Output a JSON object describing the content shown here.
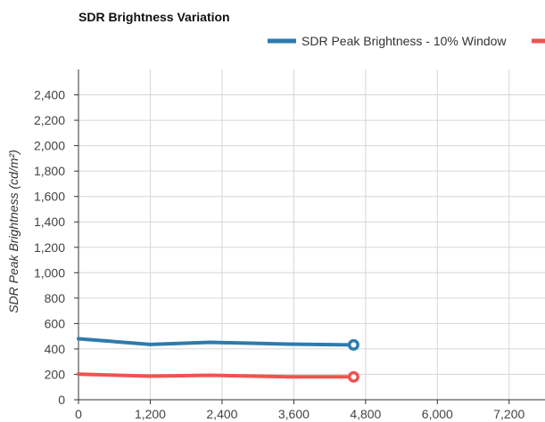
{
  "chart_data": {
    "type": "line",
    "title": "SDR Brightness Variation",
    "xlabel": "",
    "ylabel": "SDR Peak Brightness (cd/m²)",
    "xlim": [
      0,
      7800
    ],
    "ylim": [
      0,
      2600
    ],
    "x_ticks": [
      "0",
      "1,200",
      "2,400",
      "3,600",
      "4,800",
      "6,000",
      "7,200"
    ],
    "y_ticks": [
      "0",
      "200",
      "400",
      "600",
      "800",
      "1,000",
      "1,200",
      "1,400",
      "1,600",
      "1,800",
      "2,000",
      "2,200",
      "2,400"
    ],
    "grid": true,
    "legend_position": "top",
    "series": [
      {
        "name": "SDR Peak Brightness - 10% Window",
        "color": "#2e7bad",
        "x": [
          0,
          1200,
          2200,
          3500,
          4600
        ],
        "y": [
          480,
          435,
          452,
          438,
          432
        ]
      },
      {
        "name": "",
        "color": "#ef5350",
        "x": [
          0,
          1200,
          2200,
          3500,
          4600
        ],
        "y": [
          202,
          186,
          193,
          180,
          180
        ]
      }
    ]
  }
}
